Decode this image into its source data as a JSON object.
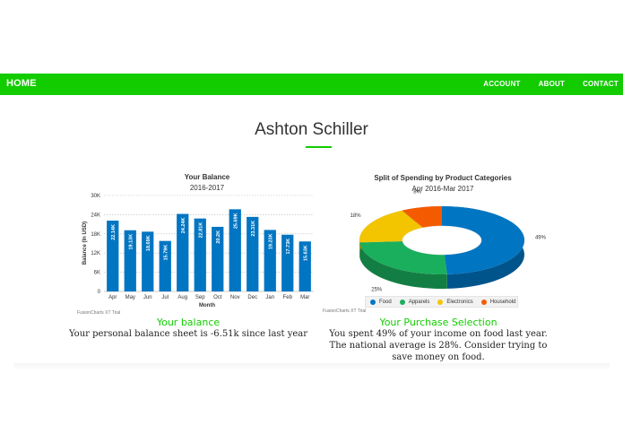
{
  "nav": {
    "home": "HOME",
    "links": [
      "ACCOUNT",
      "ABOUT",
      "CONTACT"
    ]
  },
  "profile": {
    "name": "Ashton Schiller"
  },
  "colors": {
    "accent": "#12cc00",
    "bar": "#0075c2"
  },
  "balance_chart": {
    "title": "Your Balance",
    "subtitle": "2016-2017",
    "ylabel": "Balance (In USD)",
    "xlabel": "Month",
    "y_ticks": [
      "0",
      "6K",
      "12K",
      "18K",
      "24K",
      "30K"
    ],
    "credit": "FusionCharts XT Trial"
  },
  "spending_chart": {
    "title": "Split of Spending by Product Categories",
    "subtitle": "Apr 2016-Mar 2017",
    "credit": "FusionCharts XT Trial"
  },
  "chart_data": [
    {
      "type": "bar",
      "title": "Your Balance",
      "subtitle": "2016-2017",
      "xlabel": "Month",
      "ylabel": "Balance (In USD)",
      "ylim": [
        0,
        30000
      ],
      "categories": [
        "Apr",
        "May",
        "Jun",
        "Jul",
        "Aug",
        "Sep",
        "Oct",
        "Nov",
        "Dec",
        "Jan",
        "Feb",
        "Mar"
      ],
      "values": [
        22140,
        19130,
        18690,
        15790,
        24240,
        22810,
        20200,
        25690,
        23310,
        19230,
        17730,
        15630
      ],
      "labels": [
        "22.14K",
        "19.13K",
        "18.69K",
        "15.79K",
        "24.24K",
        "22.81K",
        "20.2K",
        "25.69K",
        "23.31K",
        "19.23K",
        "17.73K",
        "15.63K"
      ],
      "grid": true
    },
    {
      "type": "pie",
      "title": "Split of Spending by Product Categories",
      "subtitle": "Apr 2016-Mar 2017",
      "slices": [
        {
          "name": "Food",
          "value": 49,
          "label": "49%",
          "color": "#0075c2"
        },
        {
          "name": "Apparels",
          "value": 25,
          "label": "25%",
          "color": "#1aaf5d"
        },
        {
          "name": "Electronics",
          "value": 18,
          "label": "18%",
          "color": "#f2c500"
        },
        {
          "name": "Household",
          "value": 8,
          "label": "8%",
          "color": "#f45b00"
        }
      ],
      "legend_position": "bottom"
    }
  ],
  "balance_section": {
    "caption": "Your balance",
    "text": "Your personal balance sheet is -6.51k since last year"
  },
  "purchase_section": {
    "caption": "Your Purchase Selection",
    "text": "You spent 49% of your income on food last year. The national average is 28%. Consider trying to save money on food."
  }
}
